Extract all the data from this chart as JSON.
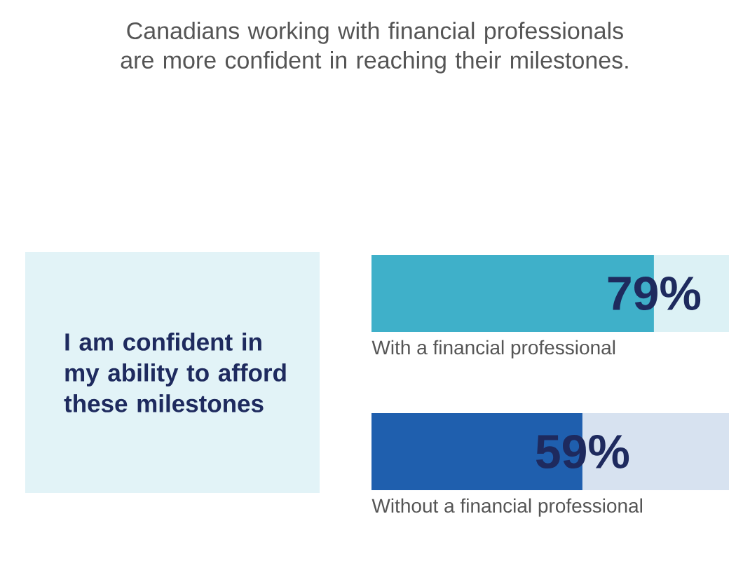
{
  "chart_data": {
    "type": "bar",
    "orientation": "horizontal",
    "title": "Canadians working with financial professionals are more confident in reaching their milestones.",
    "annotations": [
      "I am confident in my ability to afford these milestones"
    ],
    "categories": [
      "With a financial professional",
      "Without a financial professional"
    ],
    "values": [
      79,
      59
    ],
    "colors": [
      "#3fb0c9",
      "#1f5fae"
    ],
    "value_labels": [
      "79%",
      "59%"
    ],
    "xlim": [
      0,
      100
    ]
  }
}
